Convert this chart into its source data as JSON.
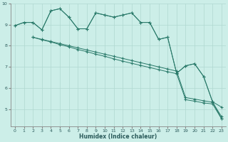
{
  "xlabel": "Humidex (Indice chaleur)",
  "bg_color": "#cceee8",
  "grid_color_major": "#b0d8d0",
  "grid_color_minor": "#c8e8e0",
  "line_color": "#2a7a6a",
  "xlim": [
    -0.5,
    23.5
  ],
  "ylim": [
    4.2,
    10.0
  ],
  "yticks": [
    5,
    6,
    7,
    8,
    9,
    10
  ],
  "xticks": [
    0,
    1,
    2,
    3,
    4,
    5,
    6,
    7,
    8,
    9,
    10,
    11,
    12,
    13,
    14,
    15,
    16,
    17,
    18,
    19,
    20,
    21,
    22,
    23
  ],
  "line1_x": [
    0,
    1,
    2,
    3,
    4,
    5,
    6,
    7,
    8,
    9,
    10,
    11,
    12,
    13,
    14,
    15,
    16,
    17,
    18,
    19,
    20,
    21,
    22,
    23
  ],
  "line1_y": [
    8.95,
    9.1,
    9.1,
    8.75,
    9.65,
    9.75,
    9.35,
    8.8,
    8.8,
    9.55,
    9.45,
    9.35,
    9.45,
    9.55,
    9.1,
    9.1,
    8.3,
    8.4,
    6.7,
    7.05,
    7.15,
    6.55,
    5.35,
    5.1
  ],
  "line2_x": [
    0,
    1,
    2,
    3,
    4,
    5,
    6,
    7,
    8,
    9,
    10,
    11,
    12,
    13,
    14,
    15,
    16,
    17,
    18,
    19,
    20,
    21,
    22,
    23
  ],
  "line2_y": [
    8.95,
    9.1,
    9.1,
    8.75,
    9.65,
    9.75,
    9.35,
    8.8,
    8.8,
    9.55,
    9.45,
    9.35,
    9.45,
    9.55,
    9.1,
    9.1,
    8.3,
    8.4,
    6.7,
    7.05,
    7.15,
    6.55,
    5.35,
    4.55
  ],
  "line3_x": [
    2,
    3,
    4,
    5,
    6,
    7,
    8,
    9,
    10,
    11,
    12,
    13,
    14,
    15,
    16,
    17,
    18,
    19,
    20,
    21,
    22,
    23
  ],
  "line3_y": [
    8.4,
    8.28,
    8.18,
    8.05,
    7.95,
    7.82,
    7.72,
    7.6,
    7.5,
    7.38,
    7.27,
    7.17,
    7.07,
    6.97,
    6.87,
    6.77,
    6.68,
    5.45,
    5.38,
    5.3,
    5.25,
    4.55
  ],
  "line4_x": [
    2,
    3,
    4,
    5,
    6,
    7,
    8,
    9,
    10,
    11,
    12,
    13,
    14,
    15,
    16,
    17,
    18,
    19,
    20,
    21,
    22,
    23
  ],
  "line4_y": [
    8.4,
    8.3,
    8.2,
    8.1,
    8.0,
    7.9,
    7.8,
    7.7,
    7.6,
    7.5,
    7.4,
    7.3,
    7.2,
    7.1,
    7.0,
    6.9,
    6.8,
    5.55,
    5.48,
    5.4,
    5.33,
    4.65
  ]
}
